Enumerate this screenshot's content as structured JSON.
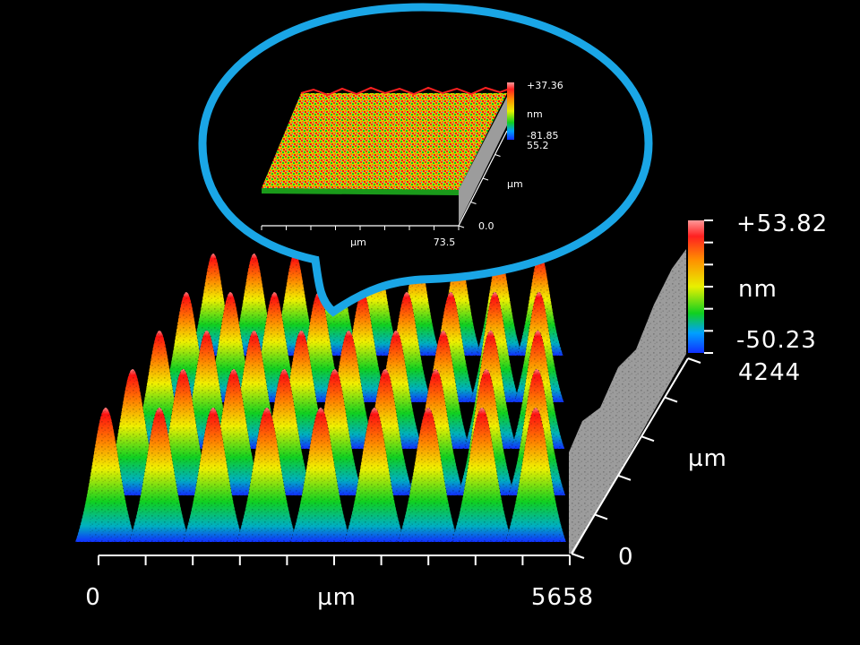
{
  "main_plot": {
    "x_axis": {
      "min": "0",
      "max": "5658",
      "unit": "µm"
    },
    "y_axis": {
      "min": "0",
      "max": "4244",
      "unit": "µm"
    },
    "z_scale": {
      "max": "+53.82",
      "min": "-50.23",
      "unit": "nm"
    }
  },
  "inset_plot": {
    "x_axis": {
      "max": "73.5",
      "unit": "µm"
    },
    "y_axis": {
      "min": "0.0",
      "max": "55.2",
      "unit": "µm"
    },
    "z_scale": {
      "max": "+37.36",
      "min": "-81.85",
      "unit": "nm"
    }
  },
  "colors": {
    "callout_border": "#1aa6e6",
    "side_wall": "#9c9c9c",
    "colormap": [
      "#1030ff",
      "#00b8b0",
      "#10d020",
      "#f0f000",
      "#ff8000",
      "#ff1010",
      "#ff9090"
    ]
  }
}
